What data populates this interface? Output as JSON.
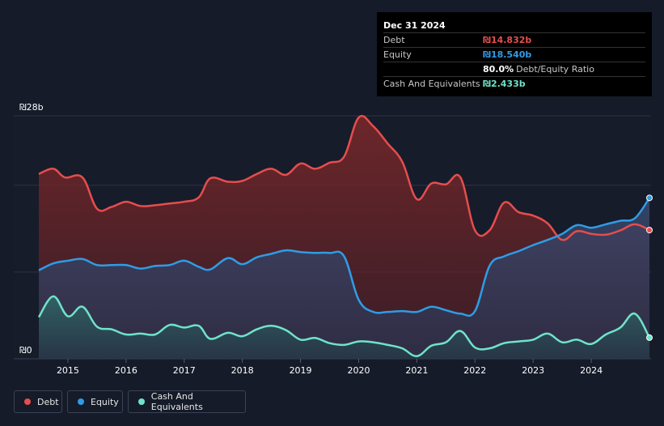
{
  "tooltip": {
    "date": "Dec 31 2024",
    "rows": [
      {
        "label": "Debt",
        "value": "₪14.832b",
        "color": "#e64d4d"
      },
      {
        "label": "Equity",
        "value": "₪18.540b",
        "color": "#2f9ce6"
      },
      {
        "label": "",
        "value": "80.0%",
        "suffix": "Debt/Equity Ratio",
        "color": "#ffffff"
      },
      {
        "label": "Cash And Equivalents",
        "value": "₪2.433b",
        "color": "#6fe3c9"
      }
    ]
  },
  "legend": [
    {
      "label": "Debt",
      "color": "#e64d4d"
    },
    {
      "label": "Equity",
      "color": "#2f9ce6"
    },
    {
      "label": "Cash And Equivalents",
      "color": "#6fe3c9"
    }
  ],
  "chart_data": {
    "type": "area",
    "ylim": [
      0,
      28
    ],
    "xlim": [
      2014.5,
      2025.0
    ],
    "y_ticks": [
      "₪0",
      "₪28b"
    ],
    "x_ticks": [
      "2015",
      "2016",
      "2017",
      "2018",
      "2019",
      "2020",
      "2021",
      "2022",
      "2023",
      "2024"
    ],
    "legend_position": "bottom-left",
    "series": [
      {
        "name": "Debt",
        "color": "#e64d4d",
        "x": [
          2014.5,
          2014.75,
          2014.95,
          2015.25,
          2015.5,
          2015.75,
          2016.0,
          2016.25,
          2016.5,
          2016.75,
          2017.0,
          2017.25,
          2017.45,
          2017.75,
          2018.0,
          2018.25,
          2018.5,
          2018.75,
          2019.0,
          2019.25,
          2019.5,
          2019.75,
          2020.0,
          2020.25,
          2020.5,
          2020.75,
          2021.0,
          2021.25,
          2021.5,
          2021.75,
          2022.0,
          2022.25,
          2022.5,
          2022.75,
          2023.0,
          2023.25,
          2023.5,
          2023.75,
          2024.0,
          2024.25,
          2024.5,
          2024.75,
          2025.0
        ],
        "values": [
          21.3,
          21.9,
          20.9,
          20.9,
          17.3,
          17.5,
          18.1,
          17.6,
          17.7,
          17.9,
          18.1,
          18.6,
          20.8,
          20.4,
          20.5,
          21.3,
          21.9,
          21.2,
          22.5,
          21.9,
          22.6,
          23.3,
          27.8,
          26.8,
          24.8,
          22.7,
          18.4,
          20.2,
          20.1,
          20.9,
          14.8,
          14.8,
          18.0,
          16.9,
          16.5,
          15.6,
          13.7,
          14.7,
          14.4,
          14.3,
          14.8,
          15.5,
          14.832
        ]
      },
      {
        "name": "Equity",
        "color": "#2f9ce6",
        "x": [
          2014.5,
          2014.75,
          2015.0,
          2015.25,
          2015.5,
          2015.75,
          2016.0,
          2016.25,
          2016.5,
          2016.75,
          2017.0,
          2017.25,
          2017.45,
          2017.75,
          2018.0,
          2018.25,
          2018.5,
          2018.75,
          2019.0,
          2019.25,
          2019.5,
          2019.75,
          2020.0,
          2020.25,
          2020.5,
          2020.75,
          2021.0,
          2021.25,
          2021.5,
          2021.75,
          2022.0,
          2022.25,
          2022.5,
          2022.75,
          2023.0,
          2023.25,
          2023.5,
          2023.75,
          2024.0,
          2024.25,
          2024.5,
          2024.75,
          2025.0
        ],
        "values": [
          10.2,
          11.0,
          11.3,
          11.5,
          10.8,
          10.8,
          10.8,
          10.4,
          10.7,
          10.8,
          11.3,
          10.6,
          10.3,
          11.6,
          10.9,
          11.7,
          12.1,
          12.5,
          12.3,
          12.2,
          12.2,
          11.8,
          6.8,
          5.4,
          5.4,
          5.5,
          5.4,
          6.0,
          5.6,
          5.2,
          5.5,
          10.7,
          11.8,
          12.4,
          13.1,
          13.7,
          14.4,
          15.4,
          15.1,
          15.5,
          15.9,
          16.2,
          18.54
        ]
      },
      {
        "name": "Cash And Equivalents",
        "color": "#6fe3c9",
        "x": [
          2014.5,
          2014.75,
          2015.0,
          2015.25,
          2015.5,
          2015.75,
          2016.0,
          2016.25,
          2016.5,
          2016.75,
          2017.0,
          2017.25,
          2017.45,
          2017.75,
          2018.0,
          2018.25,
          2018.5,
          2018.75,
          2019.0,
          2019.25,
          2019.5,
          2019.75,
          2020.0,
          2020.25,
          2020.5,
          2020.75,
          2021.0,
          2021.25,
          2021.5,
          2021.75,
          2022.0,
          2022.25,
          2022.5,
          2022.75,
          2023.0,
          2023.25,
          2023.5,
          2023.75,
          2024.0,
          2024.25,
          2024.5,
          2024.75,
          2025.0
        ],
        "values": [
          4.8,
          7.2,
          4.9,
          6.0,
          3.7,
          3.4,
          2.8,
          2.9,
          2.8,
          3.9,
          3.6,
          3.8,
          2.3,
          3.0,
          2.6,
          3.4,
          3.8,
          3.3,
          2.2,
          2.4,
          1.8,
          1.6,
          2.0,
          1.9,
          1.6,
          1.2,
          0.3,
          1.5,
          1.9,
          3.2,
          1.3,
          1.2,
          1.8,
          2.0,
          2.2,
          2.9,
          1.9,
          2.2,
          1.7,
          2.8,
          3.6,
          5.2,
          2.433
        ]
      }
    ]
  }
}
